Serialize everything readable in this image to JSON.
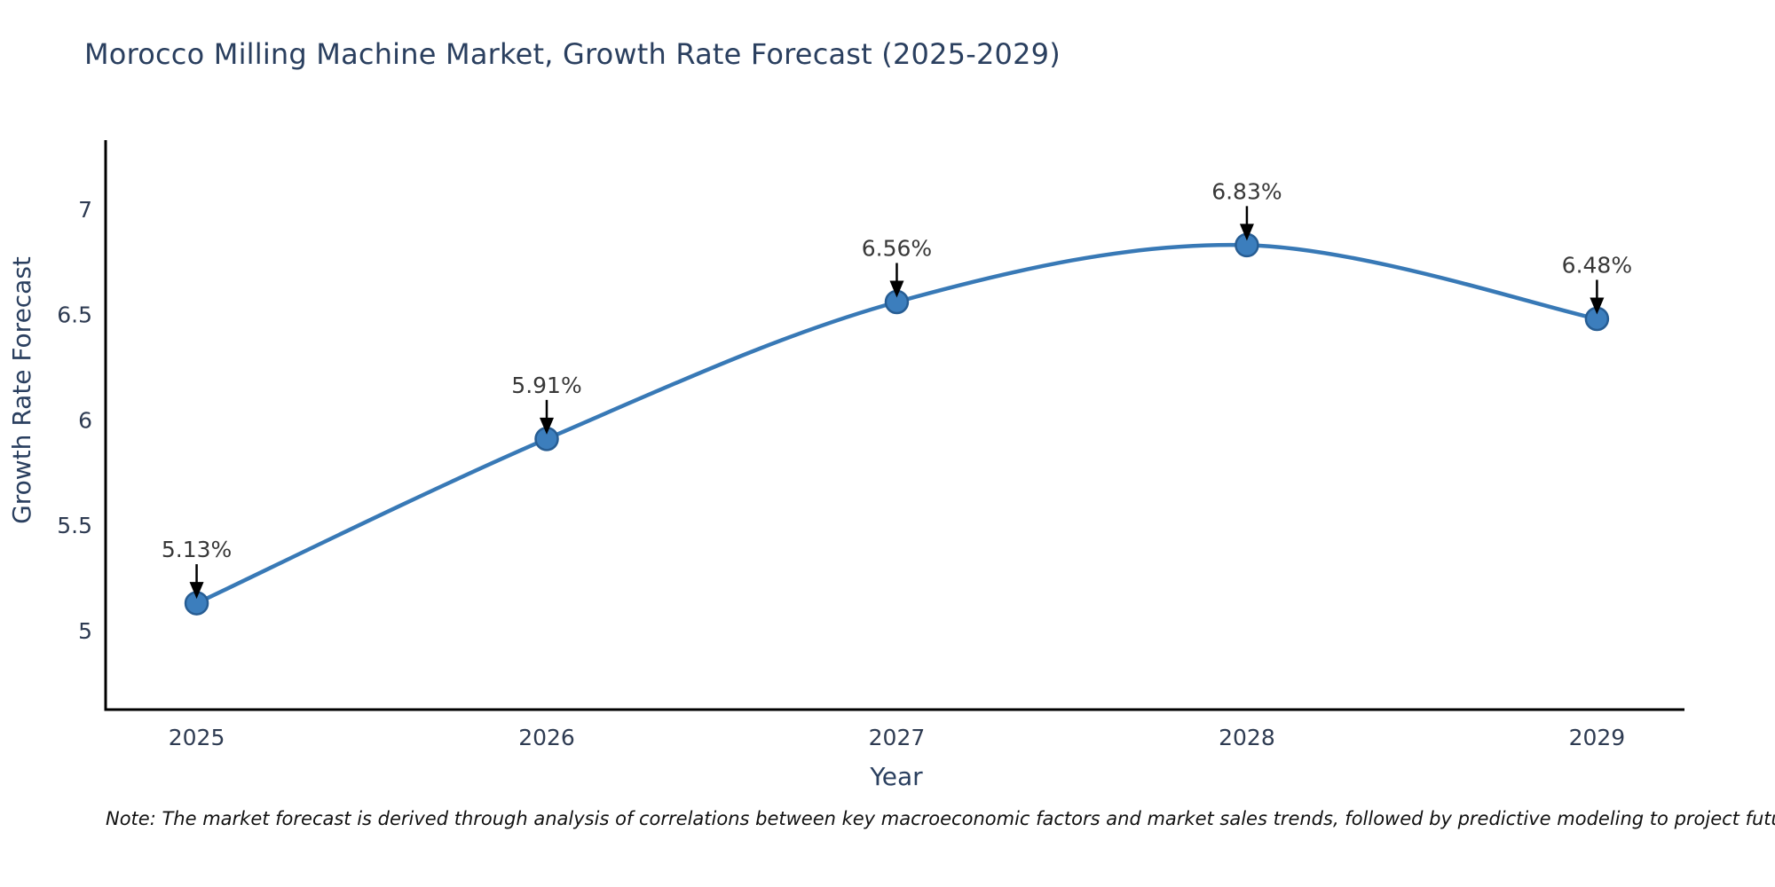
{
  "note": "Note: The market forecast is derived through analysis of correlations between key macroeconomic factors and market sales trends, followed by predictive modeling to project future sales",
  "chart_data": {
    "type": "line",
    "title": "Morocco Milling Machine Market, Growth Rate Forecast (2025-2029)",
    "xlabel": "Year",
    "ylabel": "Growth Rate Forecast",
    "x": [
      2025,
      2026,
      2027,
      2028,
      2029
    ],
    "values": [
      5.13,
      5.91,
      6.56,
      6.83,
      6.48
    ],
    "point_labels": [
      "5.13%",
      "5.91%",
      "6.56%",
      "6.83%",
      "6.48%"
    ],
    "x_ticks": [
      "2025",
      "2026",
      "2027",
      "2028",
      "2029"
    ],
    "y_ticks": [
      5,
      5.5,
      6,
      6.5,
      7
    ],
    "xlim": [
      2024.74,
      2029.25
    ],
    "ylim": [
      4.625,
      7.32
    ],
    "grid": false,
    "legend": "none",
    "line_style": "smooth-spline",
    "marker": "circle",
    "annotation_arrows": true,
    "colors": {
      "line": "#3879b6",
      "marker_fill": "#3c7ebd",
      "marker_edge": "#275d93",
      "annotation_arrow": "#000000",
      "annotation_text": "#383838",
      "axis_line": "#000000",
      "chart_text": "#2a3f5f",
      "note_text": "#111111",
      "background": "#ffffff"
    }
  }
}
